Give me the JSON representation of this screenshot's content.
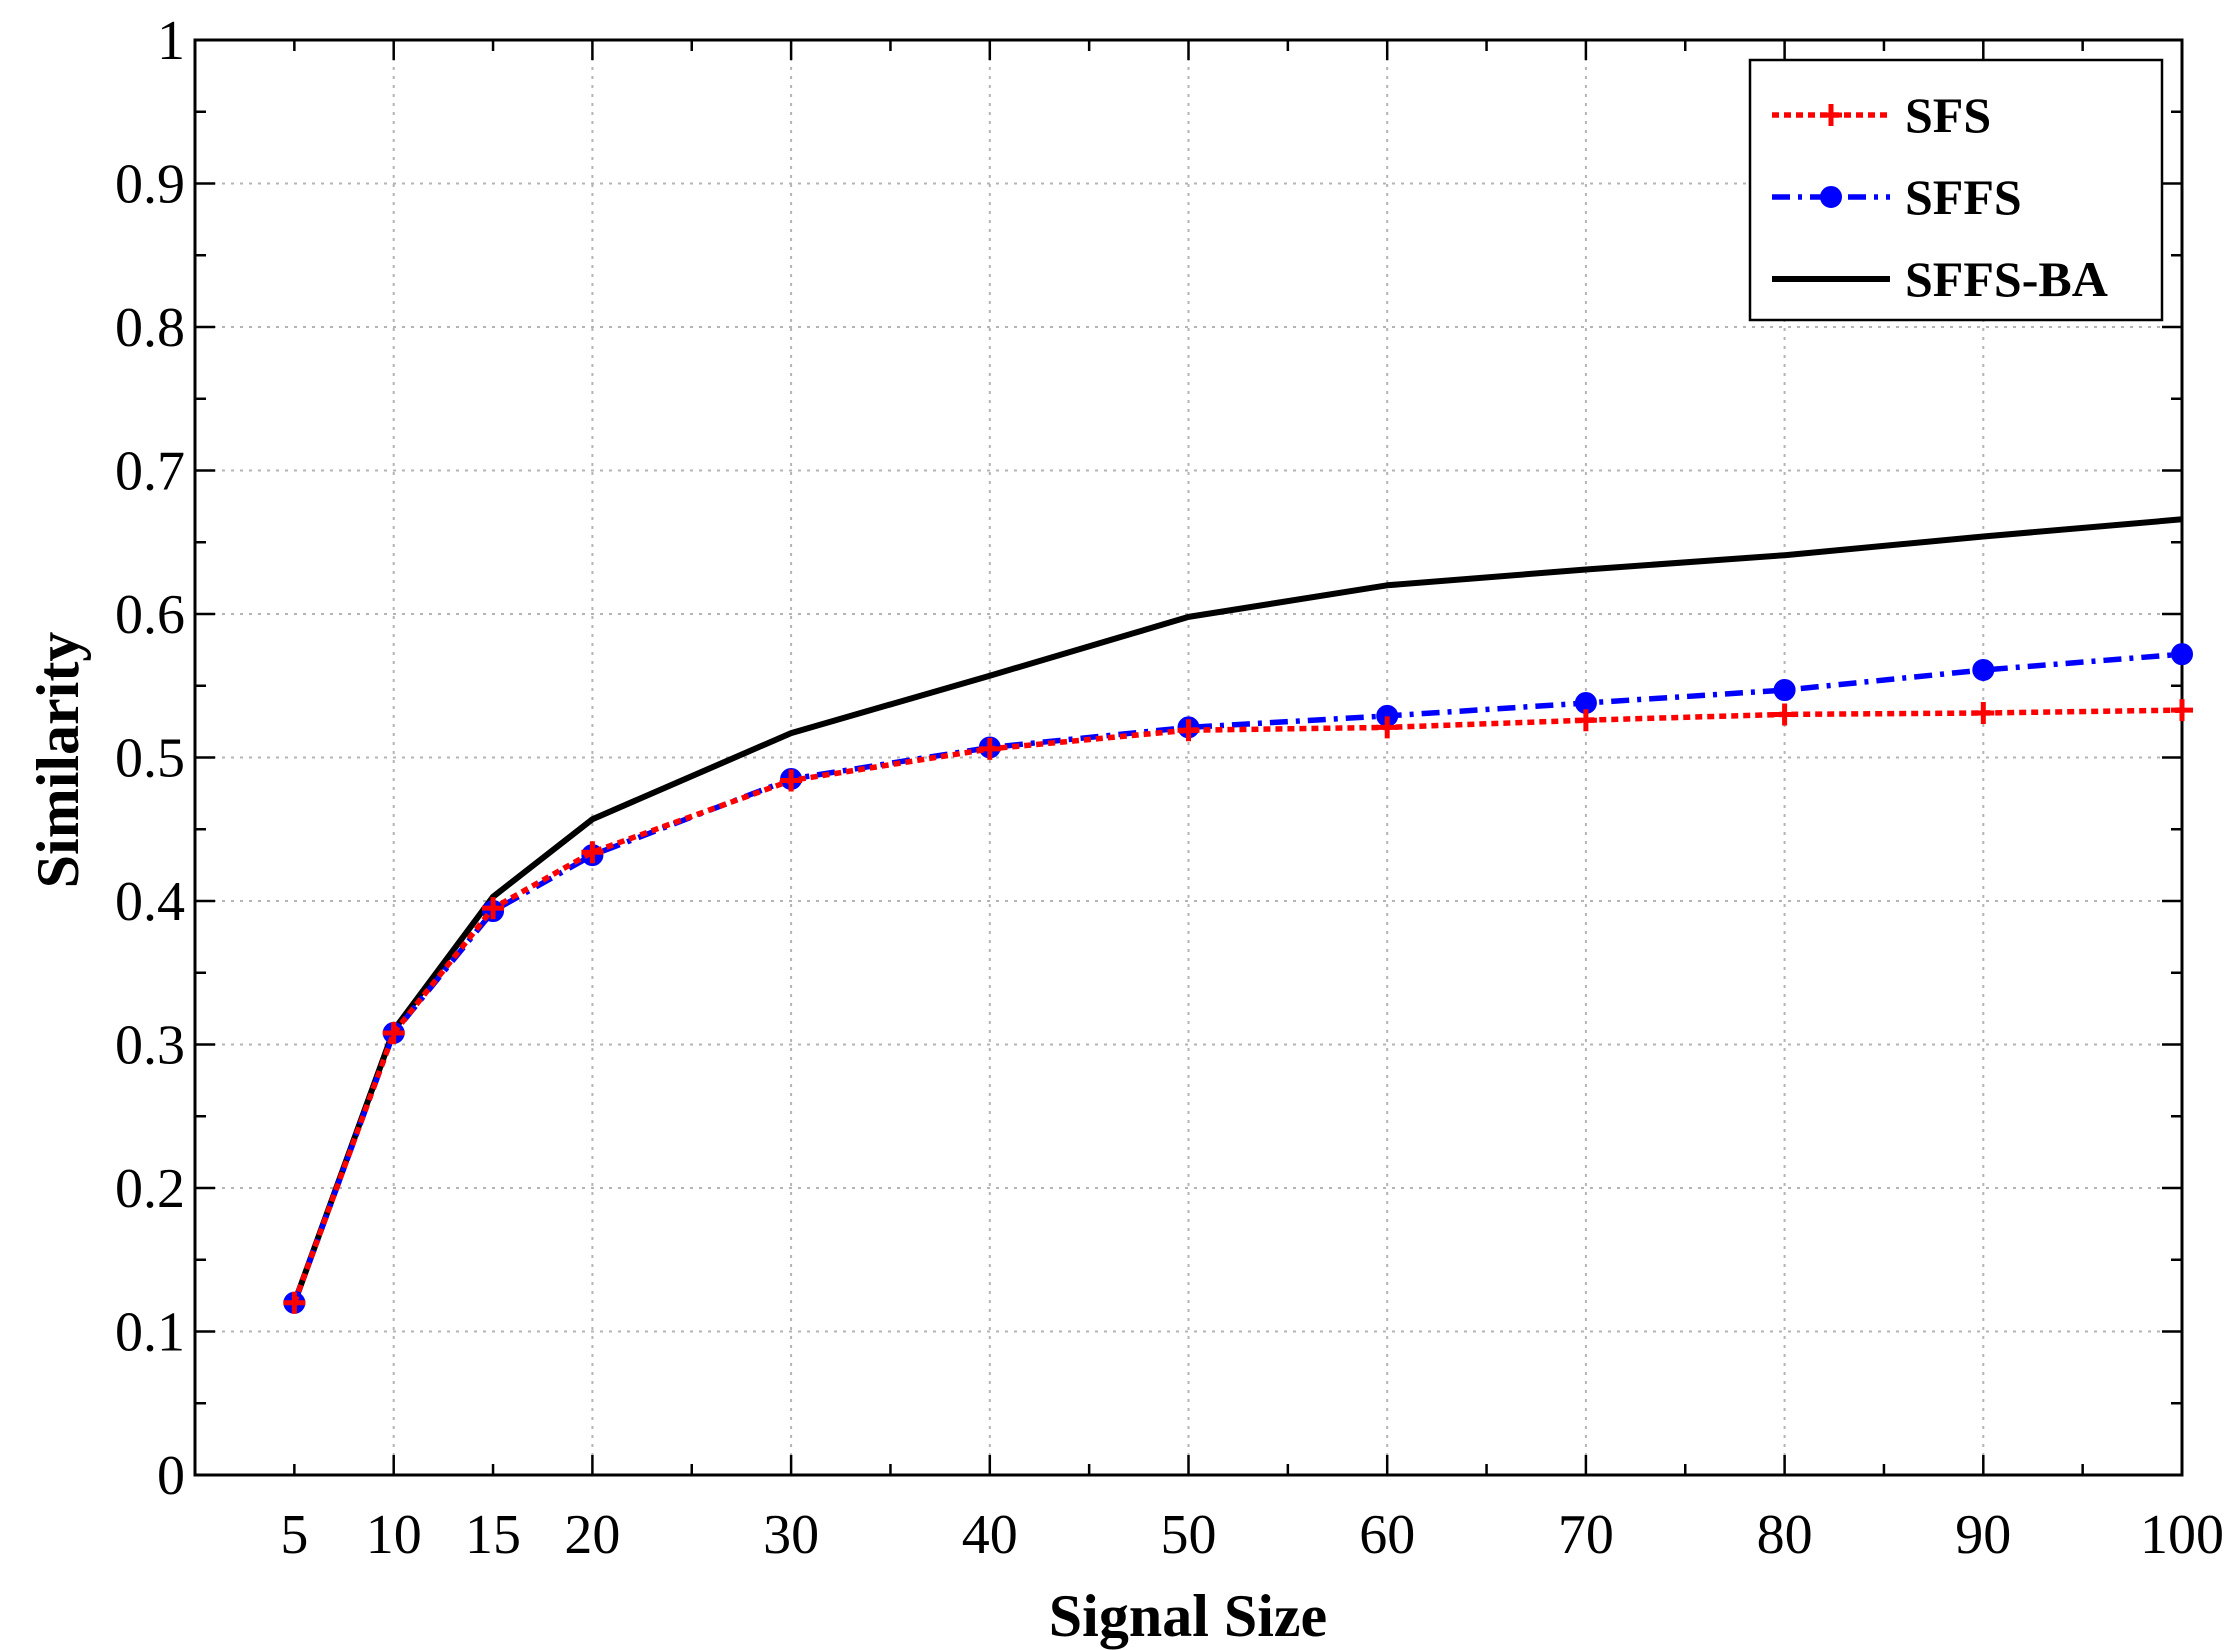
{
  "chart_data": {
    "type": "line",
    "title": "",
    "xlabel": "Signal Size",
    "ylabel": "Similarity",
    "x": [
      5,
      10,
      15,
      20,
      30,
      40,
      50,
      60,
      70,
      80,
      90,
      100
    ],
    "x_tick_labels": [
      "5",
      "10",
      "15",
      "20",
      "30",
      "40",
      "50",
      "60",
      "70",
      "80",
      "90",
      "100"
    ],
    "y_tick_labels": [
      "0",
      "0.1",
      "0.2",
      "0.3",
      "0.4",
      "0.5",
      "0.6",
      "0.7",
      "0.8",
      "0.9",
      "1"
    ],
    "xlim": [
      0,
      100
    ],
    "ylim": [
      0,
      1
    ],
    "grid": true,
    "legend_position": "top-right",
    "series": [
      {
        "name": "SFS",
        "color": "#ff0000",
        "line_style": "dotted",
        "marker": "plus",
        "values": [
          0.12,
          0.308,
          0.395,
          0.434,
          0.484,
          0.506,
          0.519,
          0.521,
          0.526,
          0.53,
          0.531,
          0.533
        ]
      },
      {
        "name": "SFFS",
        "color": "#0000ff",
        "line_style": "dash-dot",
        "marker": "circle",
        "values": [
          0.12,
          0.308,
          0.393,
          0.432,
          0.485,
          0.507,
          0.521,
          0.529,
          0.538,
          0.547,
          0.561,
          0.572
        ]
      },
      {
        "name": "SFFS-BA",
        "color": "#000000",
        "line_style": "solid",
        "marker": "none",
        "values": [
          0.12,
          0.31,
          0.403,
          0.457,
          0.517,
          0.557,
          0.598,
          0.62,
          0.631,
          0.641,
          0.654,
          0.666
        ]
      }
    ]
  }
}
